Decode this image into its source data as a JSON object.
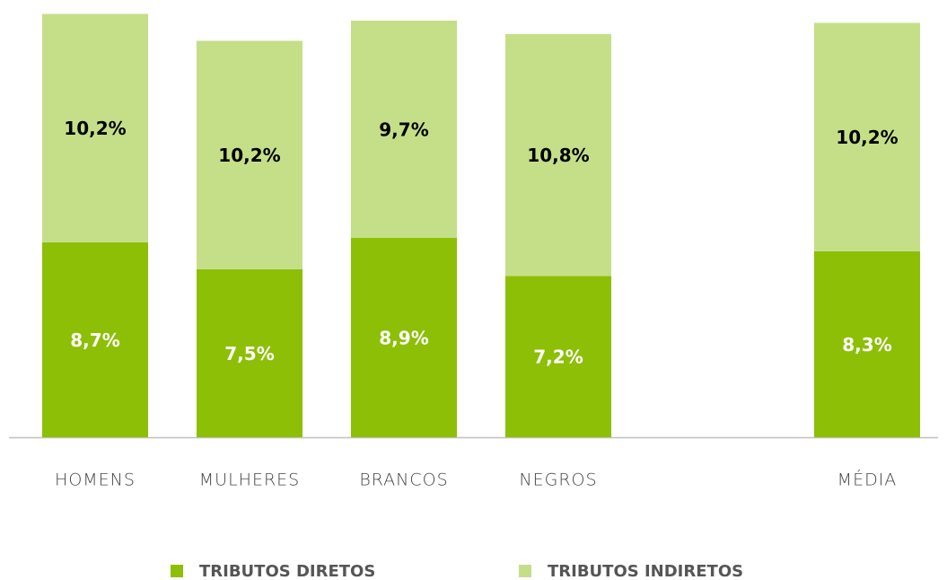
{
  "chart_data": {
    "type": "stacked_bar",
    "categories": [
      "HOMENS",
      "MULHERES",
      "BRANCOS",
      "NEGROS",
      null,
      "MÉDIA"
    ],
    "series": [
      {
        "name": "TRIBUTOS DIRETOS",
        "color": "#8cbf06",
        "values": [
          8.7,
          7.5,
          8.9,
          7.2,
          null,
          8.3
        ],
        "value_labels": [
          "8,7%",
          "7,5%",
          "8,9%",
          "7,2%",
          null,
          "8,3%"
        ],
        "label_color": "#ffffff"
      },
      {
        "name": "TRIBUTOS INDIRETOS",
        "color": "#c5df88",
        "values": [
          10.2,
          10.2,
          9.7,
          10.8,
          null,
          10.2
        ],
        "value_labels": [
          "10,2%",
          "10,2%",
          "9,7%",
          "10,8%",
          null,
          "10,2%"
        ],
        "label_color": "#000000"
      }
    ],
    "ylim": [
      0,
      19
    ]
  }
}
